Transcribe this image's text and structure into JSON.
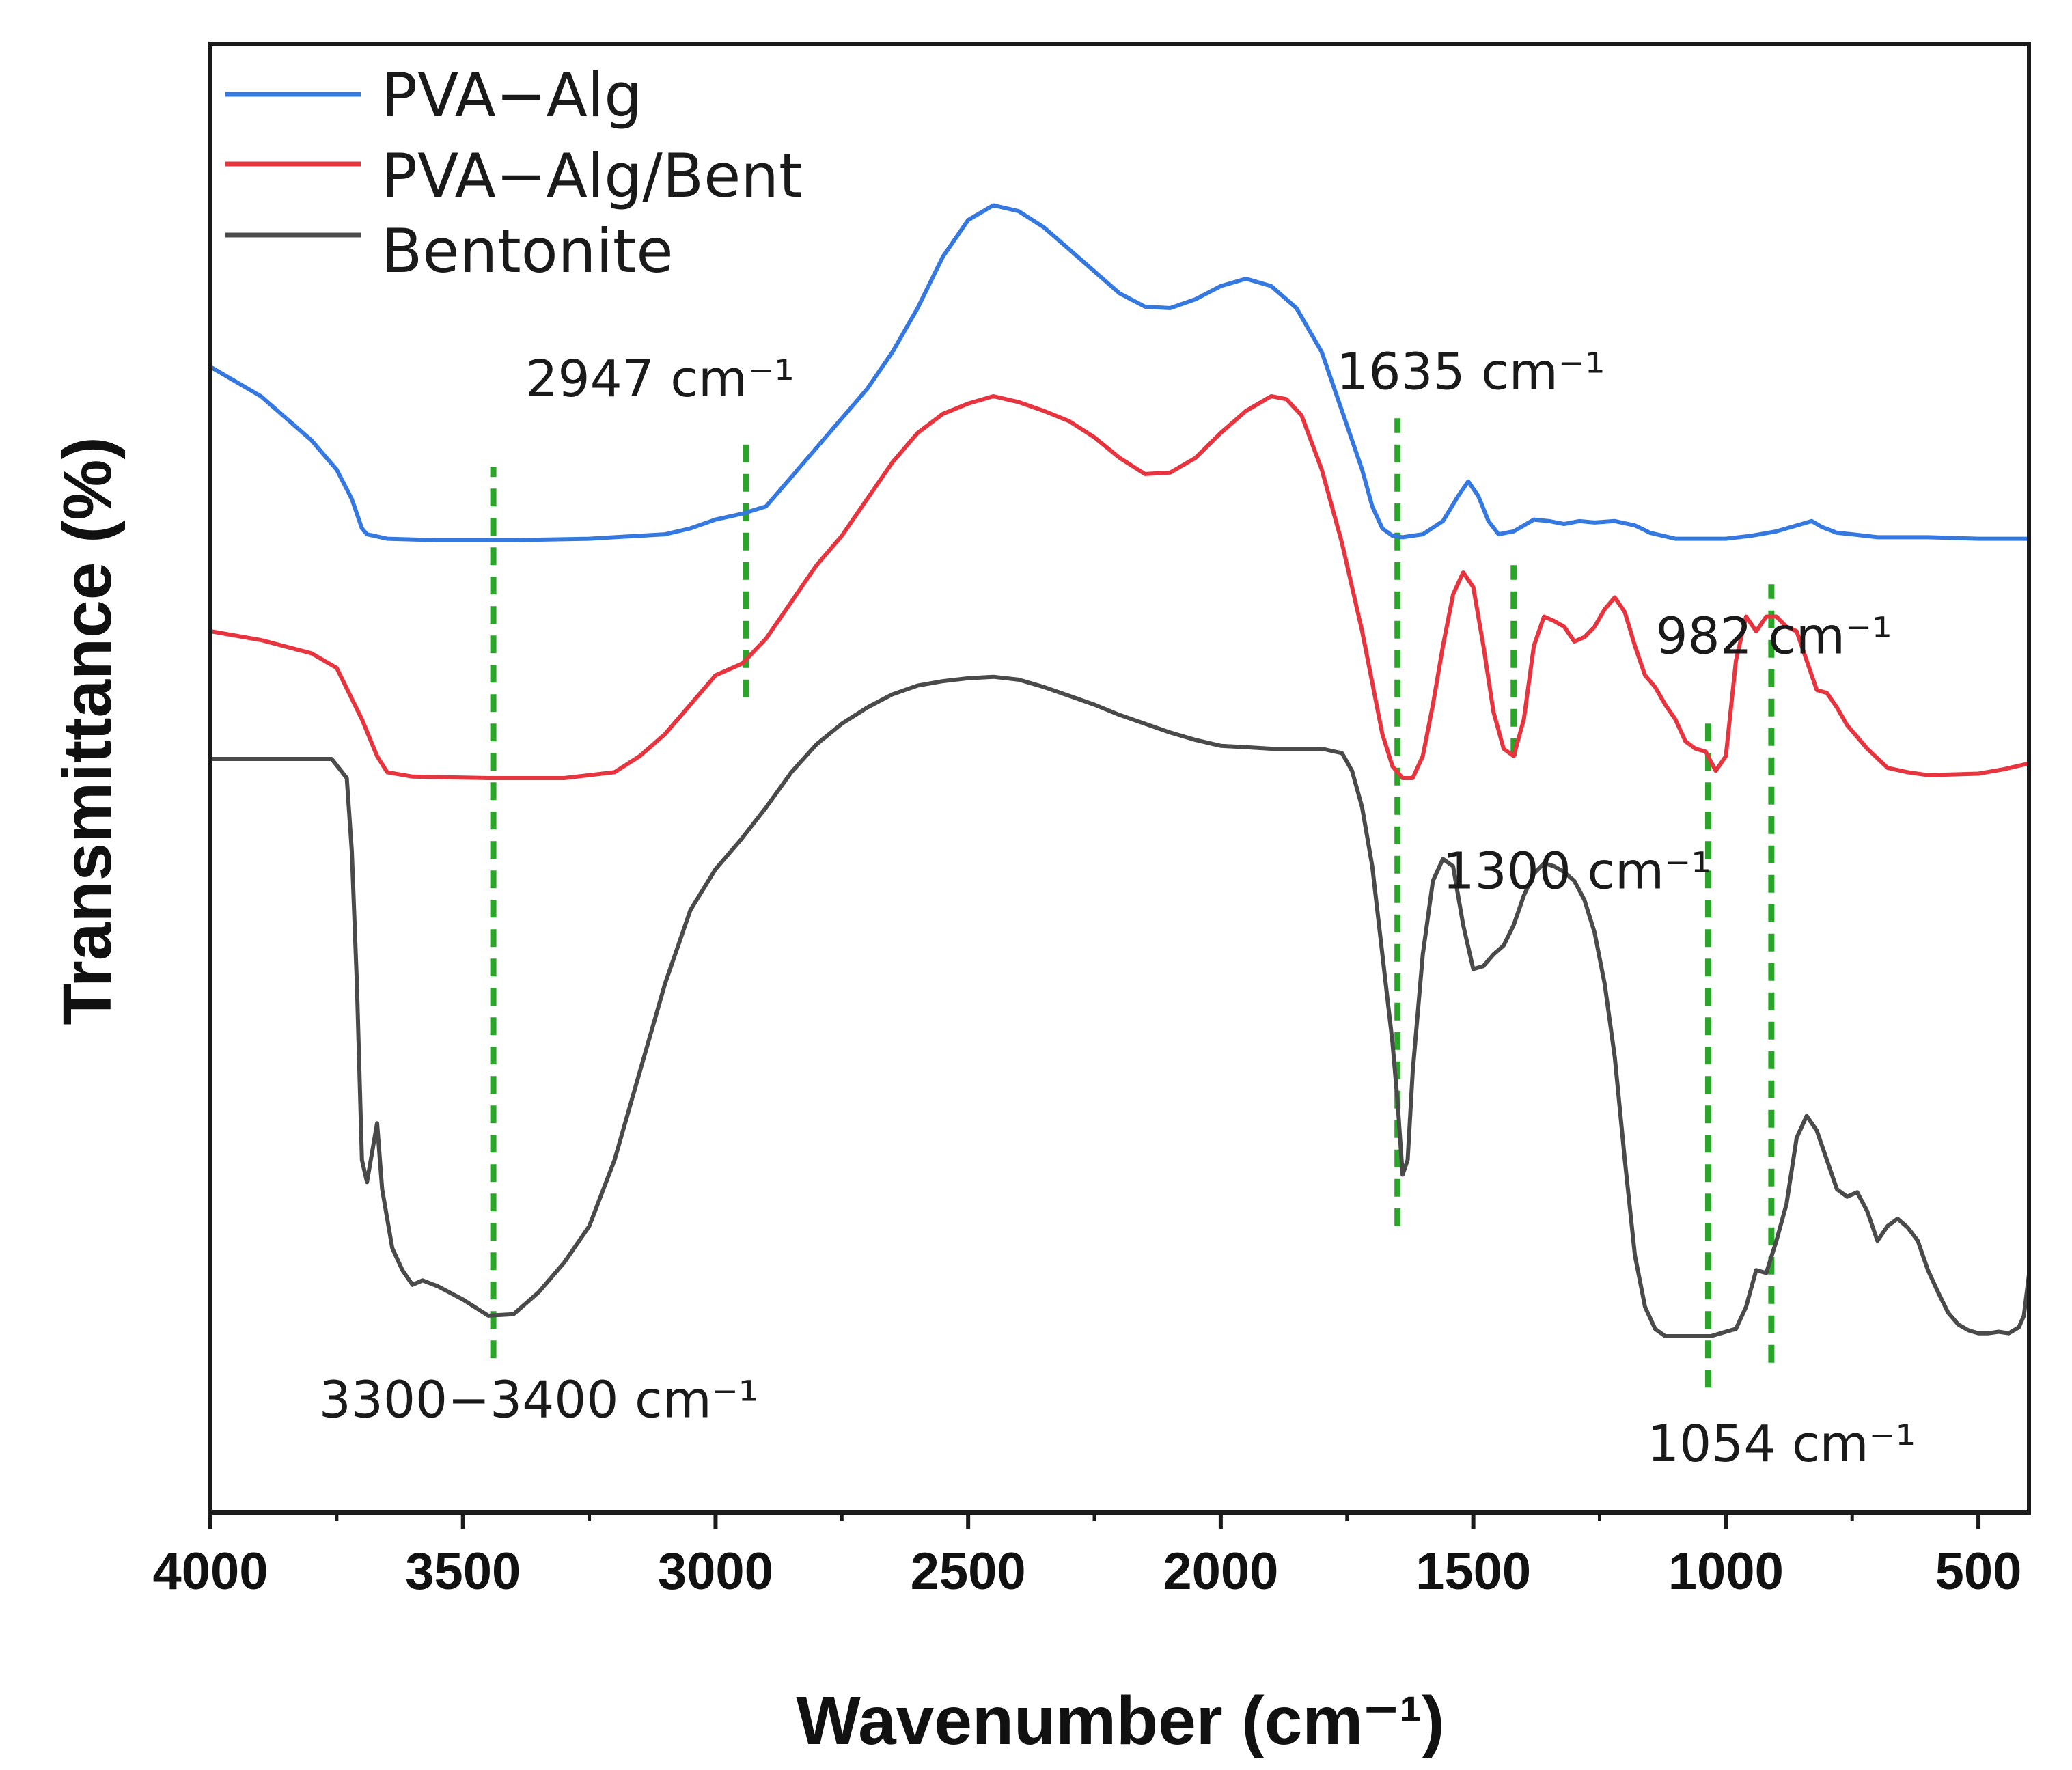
{
  "chart_data": {
    "type": "line",
    "title": "",
    "xlabel": "Wavenumber (cm⁻¹)",
    "ylabel": "Transmittance  (%)",
    "xlim": [
      4000,
      400
    ],
    "ylim": [
      0,
      100
    ],
    "x_reversed": true,
    "y_ticks_labeled": false,
    "x_ticks": [
      4000,
      3500,
      3000,
      2500,
      2000,
      1500,
      1000,
      500
    ],
    "x_tick_labels": [
      "4000",
      "3500",
      "3000",
      "2500",
      "2000",
      "1500",
      "1000",
      "500"
    ],
    "legend": {
      "position": "top-left",
      "entries": [
        "PVA−Alg",
        "PVA−Alg/Bent",
        "Bentonite"
      ]
    },
    "series": [
      {
        "name": "PVA−Alg",
        "color": "#3478e0",
        "points": [
          [
            4000,
            78
          ],
          [
            3900,
            76
          ],
          [
            3800,
            73
          ],
          [
            3750,
            71
          ],
          [
            3720,
            69
          ],
          [
            3700,
            67
          ],
          [
            3690,
            66.6
          ],
          [
            3650,
            66.3
          ],
          [
            3550,
            66.2
          ],
          [
            3400,
            66.2
          ],
          [
            3250,
            66.3
          ],
          [
            3100,
            66.6
          ],
          [
            3050,
            67
          ],
          [
            3000,
            67.6
          ],
          [
            2947,
            68
          ],
          [
            2900,
            68.5
          ],
          [
            2850,
            70.5
          ],
          [
            2800,
            72.5
          ],
          [
            2750,
            74.5
          ],
          [
            2700,
            76.5
          ],
          [
            2650,
            79
          ],
          [
            2600,
            82
          ],
          [
            2550,
            85.5
          ],
          [
            2500,
            88
          ],
          [
            2450,
            89
          ],
          [
            2400,
            88.6
          ],
          [
            2350,
            87.5
          ],
          [
            2300,
            86
          ],
          [
            2250,
            84.5
          ],
          [
            2200,
            83
          ],
          [
            2150,
            82.1
          ],
          [
            2100,
            82
          ],
          [
            2050,
            82.6
          ],
          [
            2000,
            83.5
          ],
          [
            1950,
            84
          ],
          [
            1900,
            83.5
          ],
          [
            1850,
            82
          ],
          [
            1800,
            79
          ],
          [
            1750,
            74
          ],
          [
            1720,
            71
          ],
          [
            1700,
            68.5
          ],
          [
            1680,
            67
          ],
          [
            1660,
            66.5
          ],
          [
            1640,
            66.4
          ],
          [
            1600,
            66.6
          ],
          [
            1560,
            67.5
          ],
          [
            1530,
            69.2
          ],
          [
            1510,
            70.2
          ],
          [
            1490,
            69.2
          ],
          [
            1470,
            67.5
          ],
          [
            1450,
            66.6
          ],
          [
            1420,
            66.8
          ],
          [
            1380,
            67.6
          ],
          [
            1350,
            67.5
          ],
          [
            1320,
            67.3
          ],
          [
            1290,
            67.5
          ],
          [
            1260,
            67.4
          ],
          [
            1220,
            67.5
          ],
          [
            1180,
            67.2
          ],
          [
            1150,
            66.7
          ],
          [
            1100,
            66.3
          ],
          [
            1000,
            66.3
          ],
          [
            950,
            66.5
          ],
          [
            900,
            66.8
          ],
          [
            850,
            67.3
          ],
          [
            830,
            67.5
          ],
          [
            810,
            67.1
          ],
          [
            780,
            66.7
          ],
          [
            750,
            66.6
          ],
          [
            700,
            66.4
          ],
          [
            600,
            66.4
          ],
          [
            500,
            66.3
          ],
          [
            400,
            66.3
          ]
        ]
      },
      {
        "name": "PVA−Alg/Bent",
        "color": "#e8343e",
        "points": [
          [
            4000,
            60
          ],
          [
            3900,
            59.4
          ],
          [
            3800,
            58.5
          ],
          [
            3750,
            57.5
          ],
          [
            3700,
            54
          ],
          [
            3670,
            51.5
          ],
          [
            3650,
            50.4
          ],
          [
            3600,
            50.1
          ],
          [
            3450,
            50
          ],
          [
            3300,
            50
          ],
          [
            3200,
            50.4
          ],
          [
            3150,
            51.5
          ],
          [
            3100,
            53
          ],
          [
            3050,
            55
          ],
          [
            3000,
            57
          ],
          [
            2947,
            57.8
          ],
          [
            2900,
            59.5
          ],
          [
            2850,
            62
          ],
          [
            2800,
            64.5
          ],
          [
            2750,
            66.5
          ],
          [
            2700,
            69
          ],
          [
            2650,
            71.5
          ],
          [
            2600,
            73.5
          ],
          [
            2550,
            74.8
          ],
          [
            2500,
            75.5
          ],
          [
            2450,
            76
          ],
          [
            2400,
            75.6
          ],
          [
            2350,
            75
          ],
          [
            2300,
            74.3
          ],
          [
            2250,
            73.2
          ],
          [
            2200,
            71.8
          ],
          [
            2150,
            70.7
          ],
          [
            2100,
            70.8
          ],
          [
            2050,
            71.8
          ],
          [
            2000,
            73.5
          ],
          [
            1950,
            75
          ],
          [
            1900,
            76
          ],
          [
            1870,
            75.8
          ],
          [
            1840,
            74.7
          ],
          [
            1800,
            71
          ],
          [
            1760,
            66
          ],
          [
            1720,
            60
          ],
          [
            1700,
            56.5
          ],
          [
            1680,
            53
          ],
          [
            1660,
            50.8
          ],
          [
            1640,
            50
          ],
          [
            1620,
            50
          ],
          [
            1600,
            51.5
          ],
          [
            1580,
            55
          ],
          [
            1560,
            59
          ],
          [
            1540,
            62.5
          ],
          [
            1520,
            64
          ],
          [
            1500,
            63
          ],
          [
            1480,
            59
          ],
          [
            1460,
            54.5
          ],
          [
            1440,
            52
          ],
          [
            1420,
            51.5
          ],
          [
            1400,
            54
          ],
          [
            1380,
            59
          ],
          [
            1360,
            61
          ],
          [
            1340,
            60.7
          ],
          [
            1320,
            60.3
          ],
          [
            1300,
            59.3
          ],
          [
            1280,
            59.6
          ],
          [
            1260,
            60.3
          ],
          [
            1240,
            61.5
          ],
          [
            1220,
            62.3
          ],
          [
            1200,
            61.3
          ],
          [
            1180,
            59
          ],
          [
            1160,
            57
          ],
          [
            1140,
            56.2
          ],
          [
            1120,
            55
          ],
          [
            1100,
            54
          ],
          [
            1080,
            52.5
          ],
          [
            1060,
            52
          ],
          [
            1040,
            51.8
          ],
          [
            1020,
            50.5
          ],
          [
            1000,
            51.5
          ],
          [
            980,
            58
          ],
          [
            960,
            61
          ],
          [
            940,
            60
          ],
          [
            920,
            61
          ],
          [
            900,
            61
          ],
          [
            880,
            60.3
          ],
          [
            860,
            60
          ],
          [
            840,
            58
          ],
          [
            820,
            56
          ],
          [
            800,
            55.8
          ],
          [
            780,
            54.8
          ],
          [
            760,
            53.6
          ],
          [
            720,
            52
          ],
          [
            680,
            50.7
          ],
          [
            640,
            50.4
          ],
          [
            600,
            50.2
          ],
          [
            500,
            50.3
          ],
          [
            450,
            50.6
          ],
          [
            400,
            51
          ]
        ]
      },
      {
        "name": "Bentonite",
        "color": "#4a4a4a",
        "points": [
          [
            4000,
            51.3
          ],
          [
            3900,
            51.3
          ],
          [
            3800,
            51.3
          ],
          [
            3760,
            51.3
          ],
          [
            3730,
            50
          ],
          [
            3720,
            45
          ],
          [
            3710,
            36
          ],
          [
            3700,
            24
          ],
          [
            3690,
            22.5
          ],
          [
            3680,
            24.5
          ],
          [
            3670,
            26.5
          ],
          [
            3660,
            22
          ],
          [
            3640,
            18
          ],
          [
            3620,
            16.5
          ],
          [
            3600,
            15.5
          ],
          [
            3580,
            15.8
          ],
          [
            3550,
            15.4
          ],
          [
            3500,
            14.5
          ],
          [
            3450,
            13.4
          ],
          [
            3400,
            13.5
          ],
          [
            3350,
            15
          ],
          [
            3300,
            17
          ],
          [
            3250,
            19.5
          ],
          [
            3200,
            24
          ],
          [
            3150,
            30
          ],
          [
            3100,
            36
          ],
          [
            3050,
            41
          ],
          [
            3000,
            43.8
          ],
          [
            2950,
            45.8
          ],
          [
            2900,
            48
          ],
          [
            2850,
            50.4
          ],
          [
            2800,
            52.3
          ],
          [
            2750,
            53.7
          ],
          [
            2700,
            54.8
          ],
          [
            2650,
            55.7
          ],
          [
            2600,
            56.3
          ],
          [
            2550,
            56.6
          ],
          [
            2500,
            56.8
          ],
          [
            2450,
            56.9
          ],
          [
            2400,
            56.7
          ],
          [
            2350,
            56.2
          ],
          [
            2300,
            55.6
          ],
          [
            2250,
            55
          ],
          [
            2200,
            54.3
          ],
          [
            2150,
            53.7
          ],
          [
            2100,
            53.1
          ],
          [
            2050,
            52.6
          ],
          [
            2000,
            52.2
          ],
          [
            1950,
            52.1
          ],
          [
            1900,
            52
          ],
          [
            1800,
            52
          ],
          [
            1760,
            51.7
          ],
          [
            1740,
            50.5
          ],
          [
            1720,
            48
          ],
          [
            1700,
            44
          ],
          [
            1680,
            38
          ],
          [
            1660,
            32
          ],
          [
            1650,
            28
          ],
          [
            1640,
            23
          ],
          [
            1630,
            24
          ],
          [
            1620,
            30
          ],
          [
            1600,
            38
          ],
          [
            1580,
            43
          ],
          [
            1560,
            44.5
          ],
          [
            1540,
            44
          ],
          [
            1520,
            40
          ],
          [
            1500,
            37
          ],
          [
            1480,
            37.2
          ],
          [
            1460,
            38
          ],
          [
            1440,
            38.6
          ],
          [
            1420,
            40
          ],
          [
            1400,
            42
          ],
          [
            1380,
            43.5
          ],
          [
            1360,
            44.2
          ],
          [
            1340,
            44
          ],
          [
            1320,
            43.6
          ],
          [
            1300,
            43
          ],
          [
            1280,
            41.7
          ],
          [
            1260,
            39.5
          ],
          [
            1240,
            36
          ],
          [
            1220,
            31
          ],
          [
            1200,
            24
          ],
          [
            1180,
            17.5
          ],
          [
            1160,
            14
          ],
          [
            1140,
            12.5
          ],
          [
            1120,
            12
          ],
          [
            1100,
            12
          ],
          [
            1060,
            12
          ],
          [
            1030,
            12
          ],
          [
            1000,
            12.3
          ],
          [
            980,
            12.5
          ],
          [
            960,
            14
          ],
          [
            940,
            16.5
          ],
          [
            920,
            16.3
          ],
          [
            900,
            18.5
          ],
          [
            880,
            21
          ],
          [
            860,
            25.5
          ],
          [
            840,
            27
          ],
          [
            820,
            26
          ],
          [
            800,
            24
          ],
          [
            780,
            22
          ],
          [
            760,
            21.5
          ],
          [
            740,
            21.8
          ],
          [
            720,
            20.5
          ],
          [
            700,
            18.5
          ],
          [
            680,
            19.5
          ],
          [
            660,
            20
          ],
          [
            640,
            19.4
          ],
          [
            620,
            18.5
          ],
          [
            600,
            16.5
          ],
          [
            580,
            15
          ],
          [
            560,
            13.6
          ],
          [
            540,
            12.8
          ],
          [
            520,
            12.4
          ],
          [
            500,
            12.2
          ],
          [
            480,
            12.2
          ],
          [
            460,
            12.3
          ],
          [
            440,
            12.2
          ],
          [
            420,
            12.6
          ],
          [
            410,
            13.4
          ],
          [
            400,
            16.2
          ]
        ]
      }
    ],
    "reference_lines": [
      {
        "x": 3440,
        "y_range": [
          10.5,
          71.2
        ]
      },
      {
        "x": 2940,
        "y_range": [
          55.5,
          73
        ]
      },
      {
        "x": 1650,
        "y_range": [
          19.5,
          74.5
        ]
      },
      {
        "x": 1420,
        "y_range": [
          51.5,
          64.5
        ]
      },
      {
        "x": 1035,
        "y_range": [
          8.5,
          54.5
        ]
      },
      {
        "x": 910,
        "y_range": [
          10.2,
          63.2
        ]
      }
    ],
    "annotations": [
      {
        "text": "3300−3400 cm⁻¹",
        "x": 3350,
        "y": 6.5
      },
      {
        "text": "2947 cm⁻¹",
        "x": 3110,
        "y": 76
      },
      {
        "text": "1635 cm⁻¹",
        "x": 1505,
        "y": 76.5
      },
      {
        "text": "982 cm⁻¹",
        "x": 905,
        "y": 58.5
      },
      {
        "text": "1300 cm⁻¹",
        "x": 1295,
        "y": 42.5
      },
      {
        "text": "1054 cm⁻¹",
        "x": 890,
        "y": 3.5
      }
    ],
    "reference_line_color": "#2aa52a"
  }
}
